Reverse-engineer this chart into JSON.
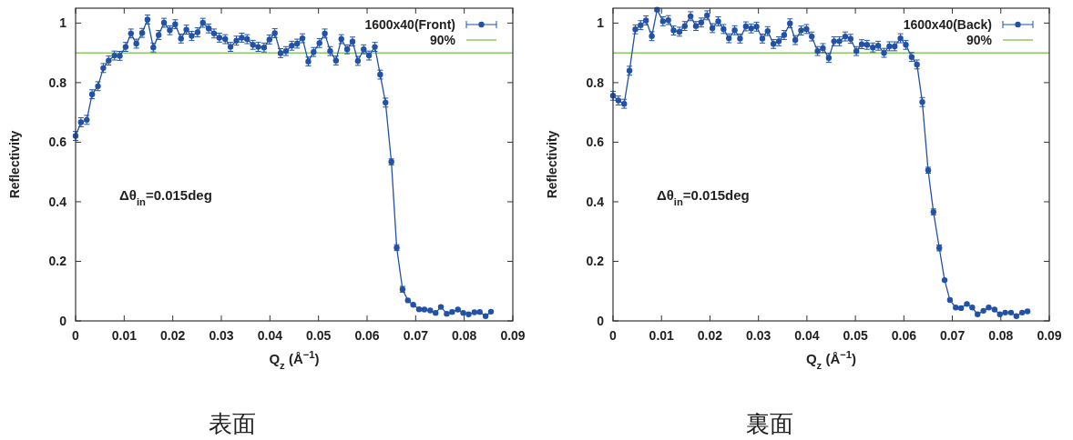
{
  "chart_data": [
    {
      "type": "line",
      "title": "表面",
      "xlabel": "Q$_{z}$ (Å$^{−1}$)",
      "ylabel": "Reflectivity",
      "xlim": [
        0,
        0.09
      ],
      "xticks": [
        0,
        0.01,
        0.02,
        0.03,
        0.04,
        0.05,
        0.06,
        0.07,
        0.08,
        0.09
      ],
      "ylim": [
        0,
        1.05
      ],
      "yticks": [
        0,
        0.2,
        0.4,
        0.6,
        0.8,
        1
      ],
      "legend": "top right",
      "marker": "circle",
      "line_style": "solid",
      "grid": false,
      "x": [
        0,
        0.0011,
        0.0023,
        0.0034,
        0.0046,
        0.0057,
        0.0068,
        0.008,
        0.0091,
        0.0103,
        0.0114,
        0.0125,
        0.0137,
        0.0148,
        0.016,
        0.0171,
        0.0182,
        0.0194,
        0.0205,
        0.0217,
        0.0228,
        0.0239,
        0.0251,
        0.0262,
        0.0274,
        0.0285,
        0.0296,
        0.0308,
        0.0319,
        0.0331,
        0.0342,
        0.0353,
        0.0365,
        0.0376,
        0.0388,
        0.0399,
        0.041,
        0.0422,
        0.0433,
        0.0445,
        0.0456,
        0.0467,
        0.0479,
        0.049,
        0.0502,
        0.0513,
        0.0524,
        0.0536,
        0.0547,
        0.0559,
        0.057,
        0.0581,
        0.0593,
        0.0604,
        0.0616,
        0.0627,
        0.0638,
        0.065,
        0.0661,
        0.0673,
        0.0684,
        0.0695,
        0.0707,
        0.0718,
        0.073,
        0.0741,
        0.0752,
        0.0764,
        0.0775,
        0.0787,
        0.0798,
        0.0809,
        0.0821,
        0.0832,
        0.0844,
        0.0855
      ],
      "series": [
        {
          "name": "1600x40(Front)",
          "color": "#2152a8",
          "values": [
            0.621,
            0.667,
            0.675,
            0.761,
            0.788,
            0.849,
            0.874,
            0.891,
            0.89,
            0.92,
            0.965,
            0.931,
            0.967,
            1.012,
            0.918,
            0.96,
            1.001,
            0.976,
            0.996,
            0.948,
            0.978,
            0.957,
            0.969,
            1.001,
            0.982,
            0.965,
            0.951,
            0.946,
            0.92,
            0.941,
            0.951,
            0.946,
            0.927,
            0.92,
            0.918,
            0.945,
            0.966,
            0.899,
            0.906,
            0.924,
            0.931,
            0.949,
            0.871,
            0.903,
            0.933,
            0.965,
            0.906,
            0.874,
            0.946,
            0.912,
            0.938,
            0.873,
            0.912,
            0.891,
            0.92,
            0.827,
            0.733,
            0.534,
            0.246,
            0.106,
            0.069,
            0.054,
            0.039,
            0.038,
            0.035,
            0.027,
            0.047,
            0.024,
            0.03,
            0.038,
            0.027,
            0.022,
            0.029,
            0.03,
            0.016,
            0.031
          ],
          "errors": [
            0.015,
            0.015,
            0.015,
            0.015,
            0.015,
            0.015,
            0.015,
            0.015,
            0.015,
            0.015,
            0.015,
            0.015,
            0.015,
            0.015,
            0.015,
            0.015,
            0.015,
            0.015,
            0.015,
            0.015,
            0.015,
            0.015,
            0.015,
            0.015,
            0.015,
            0.015,
            0.015,
            0.015,
            0.015,
            0.015,
            0.015,
            0.015,
            0.015,
            0.015,
            0.015,
            0.015,
            0.015,
            0.015,
            0.015,
            0.015,
            0.015,
            0.015,
            0.015,
            0.015,
            0.015,
            0.015,
            0.015,
            0.015,
            0.015,
            0.015,
            0.015,
            0.015,
            0.015,
            0.015,
            0.015,
            0.015,
            0.015,
            0.01,
            0.01,
            0.01,
            null,
            null,
            null,
            null,
            null,
            null,
            null,
            null,
            null,
            null,
            null,
            null,
            null,
            null,
            null,
            null
          ]
        }
      ],
      "ref_lines": [
        {
          "axis": "y",
          "value": 0.9,
          "label": "90%",
          "color": "#8cc864"
        }
      ],
      "annotations": [
        "Δθ$_{in}$=0.015deg"
      ]
    },
    {
      "type": "line",
      "title": "裏面",
      "xlabel": "Q$_{z}$ (Å$^{−1}$)",
      "ylabel": "Reflectivity",
      "xlim": [
        0,
        0.09
      ],
      "xticks": [
        0,
        0.01,
        0.02,
        0.03,
        0.04,
        0.05,
        0.06,
        0.07,
        0.08,
        0.09
      ],
      "ylim": [
        0,
        1.05
      ],
      "yticks": [
        0,
        0.2,
        0.4,
        0.6,
        0.8,
        1
      ],
      "legend": "top right",
      "marker": "circle",
      "line_style": "solid",
      "grid": false,
      "x": [
        0,
        0.0011,
        0.0023,
        0.0034,
        0.0046,
        0.0057,
        0.0068,
        0.008,
        0.0091,
        0.0103,
        0.0114,
        0.0125,
        0.0137,
        0.0148,
        0.016,
        0.0171,
        0.0182,
        0.0194,
        0.0205,
        0.0217,
        0.0228,
        0.0239,
        0.0251,
        0.0262,
        0.0274,
        0.0285,
        0.0296,
        0.0308,
        0.0319,
        0.0331,
        0.0342,
        0.0353,
        0.0365,
        0.0376,
        0.0388,
        0.0399,
        0.041,
        0.0422,
        0.0433,
        0.0445,
        0.0456,
        0.0467,
        0.0479,
        0.049,
        0.0502,
        0.0513,
        0.0524,
        0.0536,
        0.0547,
        0.0559,
        0.057,
        0.0581,
        0.0593,
        0.0604,
        0.0616,
        0.0627,
        0.0638,
        0.065,
        0.0661,
        0.0673,
        0.0684,
        0.0695,
        0.0707,
        0.0718,
        0.073,
        0.0741,
        0.0752,
        0.0764,
        0.0775,
        0.0787,
        0.0798,
        0.0809,
        0.0821,
        0.0832,
        0.0844,
        0.0855
      ],
      "series": [
        {
          "name": "1600x40(Back)",
          "color": "#2152a8",
          "values": [
            0.756,
            0.74,
            0.729,
            0.84,
            0.979,
            0.993,
            1.009,
            0.956,
            1.045,
            1.006,
            1.01,
            0.975,
            0.971,
            0.99,
            1.023,
            0.99,
            1.002,
            1.026,
            0.983,
            1.006,
            0.98,
            0.949,
            0.976,
            0.948,
            0.989,
            0.982,
            0.988,
            0.948,
            0.973,
            0.93,
            0.939,
            0.96,
            0.999,
            0.943,
            0.975,
            0.98,
            0.955,
            0.906,
            0.916,
            0.883,
            0.939,
            0.939,
            0.955,
            0.947,
            0.906,
            0.929,
            0.927,
            0.918,
            0.924,
            0.9,
            0.922,
            0.922,
            0.949,
            0.927,
            0.886,
            0.861,
            0.735,
            0.506,
            0.366,
            0.245,
            0.137,
            0.07,
            0.045,
            0.043,
            0.057,
            0.045,
            0.022,
            0.034,
            0.045,
            0.038,
            0.022,
            0.028,
            0.028,
            0.016,
            0.028,
            0.032
          ],
          "errors": [
            0.015,
            0.015,
            0.015,
            0.015,
            0.015,
            0.015,
            0.015,
            0.015,
            0.005,
            0.015,
            0.015,
            0.015,
            0.015,
            0.015,
            0.015,
            0.015,
            0.015,
            0.015,
            0.015,
            0.015,
            0.015,
            0.015,
            0.015,
            0.015,
            0.015,
            0.015,
            0.015,
            0.015,
            0.015,
            0.015,
            0.015,
            0.015,
            0.015,
            0.015,
            0.015,
            0.015,
            0.015,
            0.015,
            0.015,
            0.015,
            0.015,
            0.015,
            0.015,
            0.015,
            0.015,
            0.015,
            0.015,
            0.015,
            0.015,
            0.015,
            0.015,
            0.015,
            0.015,
            0.015,
            0.015,
            0.015,
            0.015,
            0.01,
            0.01,
            0.01,
            null,
            null,
            null,
            null,
            null,
            null,
            null,
            null,
            null,
            null,
            null,
            null,
            null,
            null,
            null,
            null
          ]
        }
      ],
      "ref_lines": [
        {
          "axis": "y",
          "value": 0.9,
          "label": "90%",
          "color": "#8cc864"
        }
      ],
      "annotations": [
        "Δθ$_{in}$=0.015deg"
      ]
    }
  ]
}
